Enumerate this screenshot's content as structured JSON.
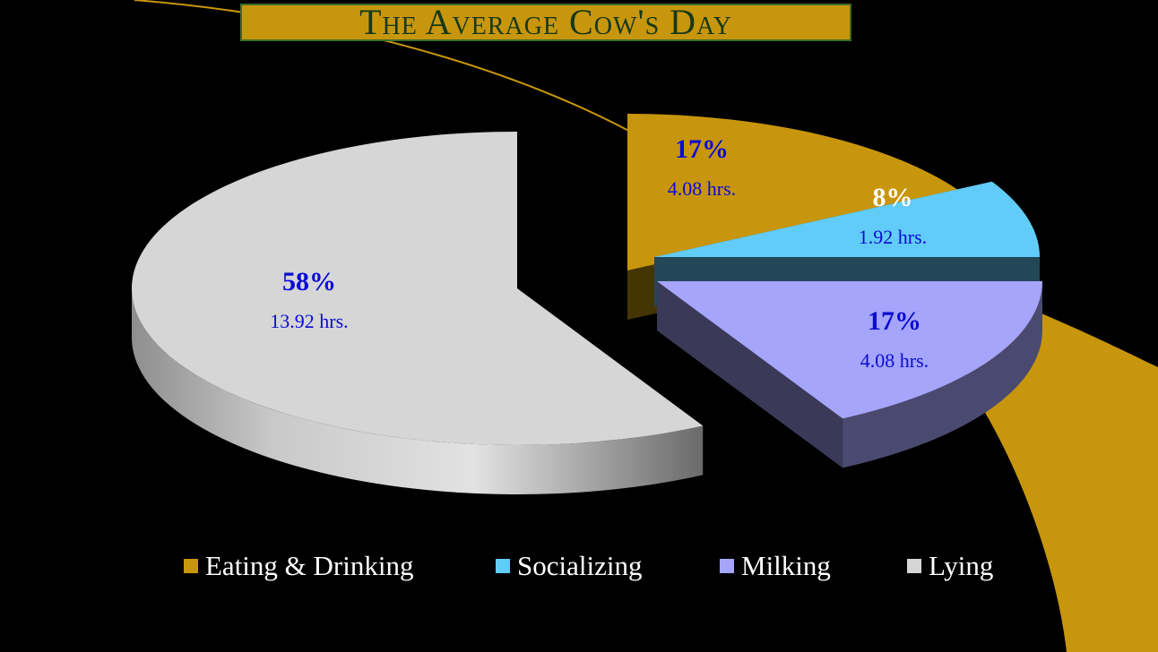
{
  "chart_data": {
    "type": "pie",
    "title": "The Average Cow's Day",
    "style": "3d-exploded",
    "legend_position": "bottom",
    "slices": [
      {
        "name": "Eating & Drinking",
        "percent": 17,
        "hours": 4.08,
        "percent_label": "17%",
        "hours_label": "4.08 hrs.",
        "color": "#c8960c",
        "label_color": "#0b0bd6"
      },
      {
        "name": "Socializing",
        "percent": 8,
        "hours": 1.92,
        "percent_label": "8%",
        "hours_label": "1.92 hrs.",
        "color": "#62ccf8",
        "label_color": "#ffffff"
      },
      {
        "name": "Milking",
        "percent": 17,
        "hours": 4.08,
        "percent_label": "17%",
        "hours_label": "4.08 hrs.",
        "color": "#a5a5fb",
        "label_color": "#0b0bd6"
      },
      {
        "name": "Lying",
        "percent": 58,
        "hours": 13.92,
        "percent_label": "58%",
        "hours_label": "13.92 hrs.",
        "color": "#d6d6d6",
        "label_color": "#0b0bd6"
      }
    ]
  },
  "colors": {
    "background": "#000000",
    "title_band": "#c8960c",
    "title_text": "#17381a",
    "decor_swoosh": "#c8960c",
    "legend_text": "#ffffff"
  }
}
